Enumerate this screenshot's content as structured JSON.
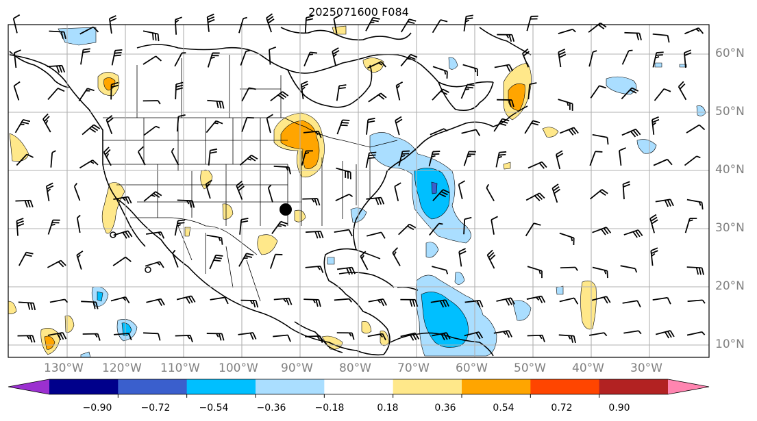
{
  "title": "2025071600 F084",
  "lat_labels": [
    "60°N",
    "50°N",
    "40°N",
    "30°N",
    "20°N",
    "10°N"
  ],
  "lon_labels": [
    "130°W",
    "120°W",
    "110°W",
    "100°W",
    "90°W",
    "80°W",
    "70°W",
    "60°W",
    "50°W",
    "40°W",
    "30°W"
  ],
  "colorbar": {
    "labels": [
      "−0.90",
      "−0.72",
      "−0.54",
      "−0.36",
      "−0.18",
      "0.18",
      "0.36",
      "0.54",
      "0.72",
      "0.90"
    ],
    "colors": [
      "#9b30d0",
      "#00008b",
      "#3a5fcd",
      "#00bfff",
      "#aadeff",
      "#ffffff",
      "#ffe88a",
      "#ffa500",
      "#ff4500",
      "#b22222",
      "#ff85b0"
    ]
  },
  "map_colors": {
    "light_blue": "#aadeff",
    "blue": "#00bfff",
    "medium_blue": "#3a5fcd",
    "light_yellow": "#ffe88a",
    "orange": "#ffa500"
  }
}
